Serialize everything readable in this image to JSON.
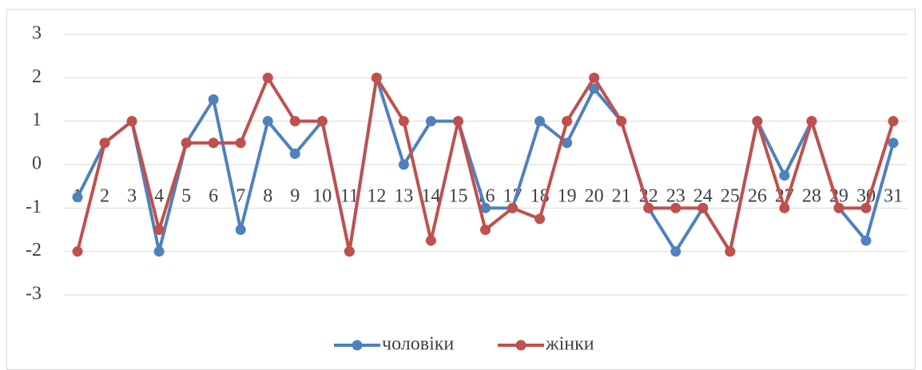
{
  "chart_data": {
    "type": "line",
    "categories": [
      "1",
      "2",
      "3",
      "4",
      "5",
      "6",
      "7",
      "8",
      "9",
      "10",
      "11",
      "12",
      "13",
      "14",
      "15",
      "16",
      "17",
      "18",
      "19",
      "20",
      "21",
      "22",
      "23",
      "24",
      "25",
      "26",
      "27",
      "28",
      "29",
      "30",
      "31"
    ],
    "series": [
      {
        "name": "чоловіки",
        "color": "#4f81bd",
        "values": [
          -0.75,
          0.5,
          1,
          -2,
          0.5,
          1.5,
          -1.5,
          1,
          0.25,
          1,
          -2,
          2,
          0,
          1,
          1,
          -1,
          -1,
          1,
          0.5,
          1.75,
          1,
          -1,
          -2,
          -1,
          -2,
          1,
          -0.25,
          1,
          -1,
          -1.75,
          0.5
        ]
      },
      {
        "name": "жінки",
        "color": "#c0504d",
        "values": [
          -2,
          0.5,
          1,
          -1.5,
          0.5,
          0.5,
          0.5,
          2,
          1,
          1,
          -2,
          2,
          1,
          -1.75,
          1,
          -1.5,
          -1,
          -1.25,
          1,
          2,
          1,
          -1,
          -1,
          -1,
          -2,
          1,
          -1,
          1,
          -1,
          -1,
          1
        ]
      }
    ],
    "ylim": [
      -3,
      3
    ],
    "yticks": [
      -3,
      -2,
      -1,
      0,
      1,
      2,
      3
    ],
    "grid": true,
    "legend": "bottom"
  }
}
